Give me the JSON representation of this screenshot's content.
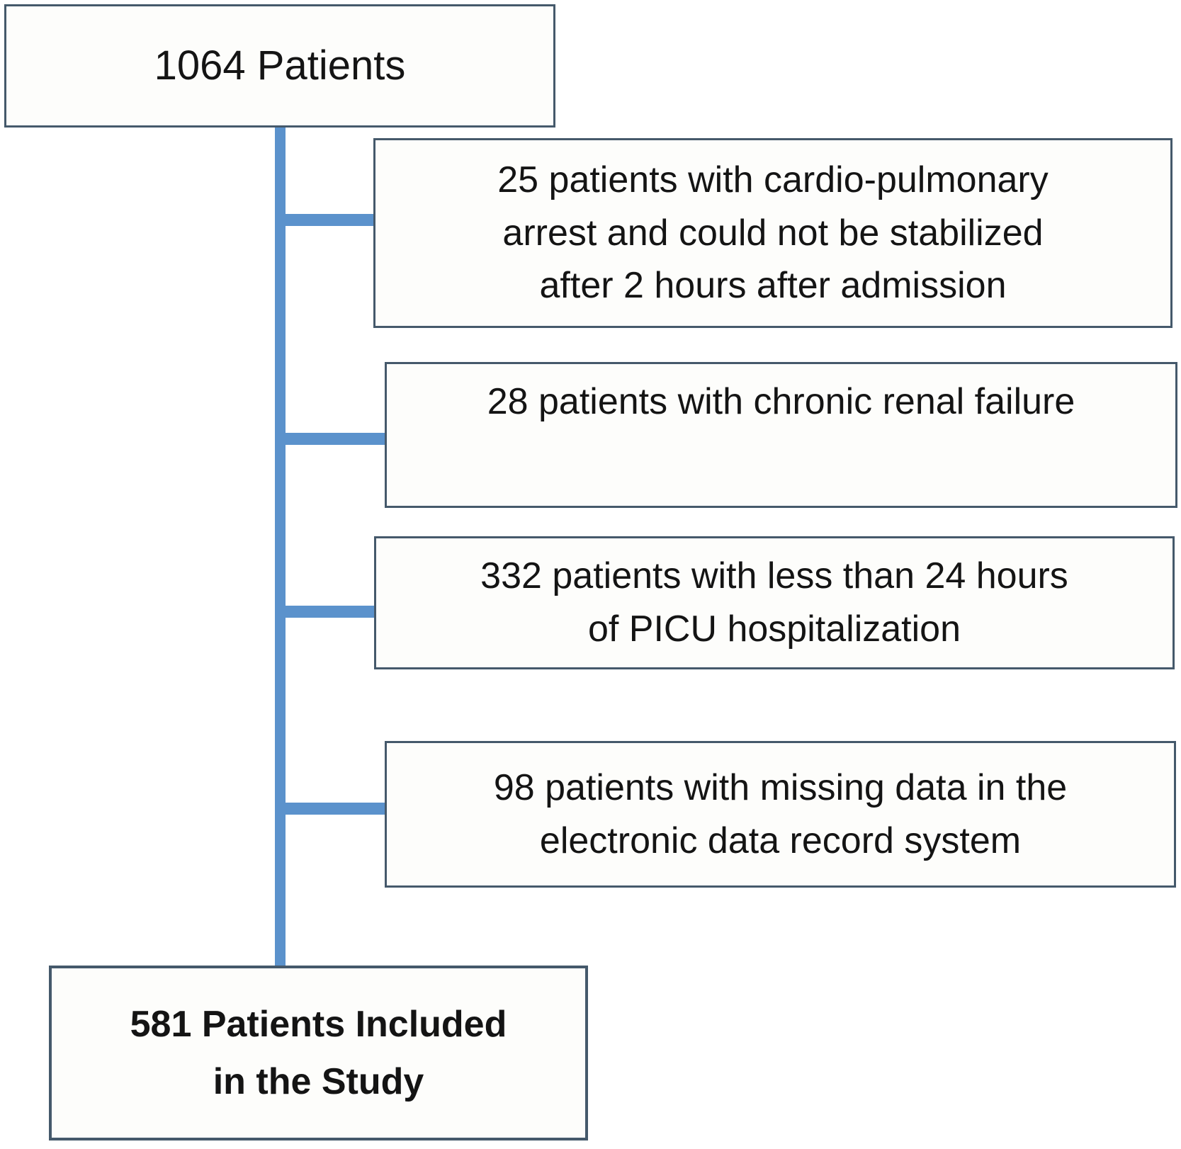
{
  "diagram": {
    "type": "patient-flow",
    "colors": {
      "box_border": "#45596b",
      "connector": "#5b92cc",
      "box_bg": "#fdfdfb",
      "page_bg": "#ffffff",
      "text": "#141414"
    },
    "counts": {
      "source": 1064,
      "excluded": [
        25,
        28,
        332,
        98
      ],
      "included": 581
    },
    "source": {
      "lines": [
        "1064 Patients"
      ]
    },
    "exclusions": [
      {
        "lines": [
          "25 patients with cardio-pulmonary",
          "arrest and could not be stabilized",
          "after 2 hours after admission"
        ]
      },
      {
        "lines": [
          "28 patients with chronic renal failure"
        ]
      },
      {
        "lines": [
          "332 patients with less than 24 hours",
          "of PICU hospitalization"
        ]
      },
      {
        "lines": [
          "98 patients with missing data in the",
          "electronic data record system"
        ]
      }
    ],
    "result": {
      "lines": [
        "581 Patients Included",
        "in the Study"
      ]
    }
  }
}
